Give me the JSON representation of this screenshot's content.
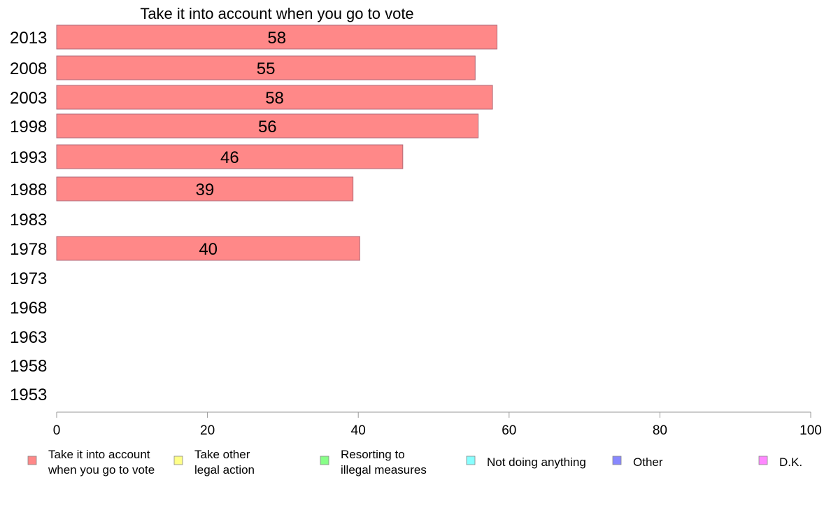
{
  "chart_data": {
    "type": "bar",
    "orientation": "horizontal",
    "title": "Take it into account when you go to vote",
    "categories": [
      "2013",
      "2008",
      "2003",
      "1998",
      "1993",
      "1988",
      "1983",
      "1978",
      "1973",
      "1968",
      "1963",
      "1958",
      "1953"
    ],
    "series": [
      {
        "name": "Take it into account when you go to vote",
        "values": [
          58.4,
          55.5,
          57.8,
          55.9,
          45.9,
          39.3,
          null,
          40.2,
          null,
          null,
          null,
          null,
          null
        ],
        "labels": [
          "58",
          "55",
          "58",
          "56",
          "46",
          "39",
          "",
          "40",
          "",
          "",
          "",
          "",
          ""
        ],
        "color": "#ff8888"
      }
    ],
    "xlim": [
      0,
      100
    ],
    "xticks": [
      "0",
      "20",
      "40",
      "60",
      "80",
      "100"
    ],
    "grid": false,
    "legend": {
      "position": "bottom",
      "items": [
        {
          "lines": [
            "Take it into account",
            "when you go to vote"
          ],
          "color": "#ff8888"
        },
        {
          "lines": [
            "Take other",
            "legal action"
          ],
          "color": "#ffff88"
        },
        {
          "lines": [
            "Resorting to",
            "illegal measures"
          ],
          "color": "#88ff88"
        },
        {
          "lines": [
            "Not doing anything"
          ],
          "color": "#88ffff"
        },
        {
          "lines": [
            "Other"
          ],
          "color": "#8888ff"
        },
        {
          "lines": [
            "D.K."
          ],
          "color": "#ff88ff"
        }
      ]
    }
  }
}
